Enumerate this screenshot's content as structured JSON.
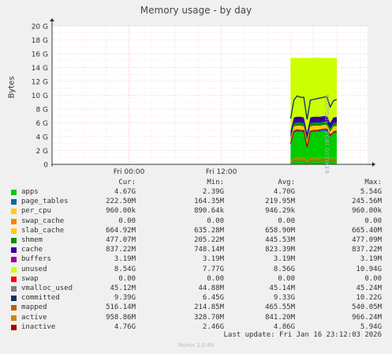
{
  "title": "Memory usage - by day",
  "ylabel": "Bytes",
  "side_label": "RRDTOOL / TOBI OETIKER",
  "x_ticks": [
    "Fri 00:00",
    "Fri 12:00"
  ],
  "y_ticks": [
    "0",
    "2 G",
    "4 G",
    "6 G",
    "8 G",
    "10 G",
    "12 G",
    "14 G",
    "16 G",
    "18 G",
    "20 G"
  ],
  "columns": [
    "Cur:",
    "Min:",
    "Avg:",
    "Max:"
  ],
  "legend": [
    {
      "name": "apps",
      "color": "#00cc00",
      "cur": "4.67G",
      "min": "2.39G",
      "avg": "4.70G",
      "max": "5.54G"
    },
    {
      "name": "page_tables",
      "color": "#0066b3",
      "cur": "222.50M",
      "min": "164.35M",
      "avg": "219.95M",
      "max": "245.56M"
    },
    {
      "name": "per_cpu",
      "color": "#ffcc00",
      "cur": "960.00k",
      "min": "890.64k",
      "avg": "946.29k",
      "max": "960.00k"
    },
    {
      "name": "swap_cache",
      "color": "#ff8000",
      "cur": "0.00",
      "min": "0.00",
      "avg": "0.00",
      "max": "0.00"
    },
    {
      "name": "slab_cache",
      "color": "#ffcc00",
      "cur": "664.92M",
      "min": "635.28M",
      "avg": "658.90M",
      "max": "665.40M"
    },
    {
      "name": "shmem",
      "color": "#008f00",
      "cur": "477.07M",
      "min": "205.22M",
      "avg": "445.53M",
      "max": "477.09M"
    },
    {
      "name": "cache",
      "color": "#330099",
      "cur": "837.22M",
      "min": "748.14M",
      "avg": "823.39M",
      "max": "837.22M"
    },
    {
      "name": "buffers",
      "color": "#990099",
      "cur": "3.19M",
      "min": "3.19M",
      "avg": "3.19M",
      "max": "3.19M"
    },
    {
      "name": "unused",
      "color": "#ccff00",
      "cur": "8.54G",
      "min": "7.77G",
      "avg": "8.56G",
      "max": "10.94G"
    },
    {
      "name": "swap",
      "color": "#ff0000",
      "cur": "0.00",
      "min": "0.00",
      "avg": "0.00",
      "max": "0.00"
    },
    {
      "name": "vmalloc_used",
      "color": "#808080",
      "cur": "45.12M",
      "min": "44.88M",
      "avg": "45.14M",
      "max": "45.24M"
    },
    {
      "name": "committed",
      "color": "#003366",
      "cur": "9.39G",
      "min": "6.45G",
      "avg": "9.33G",
      "max": "10.22G"
    },
    {
      "name": "mapped",
      "color": "#bf6000",
      "cur": "516.14M",
      "min": "214.85M",
      "avg": "465.55M",
      "max": "540.05M"
    },
    {
      "name": "active",
      "color": "#cc8800",
      "cur": "958.86M",
      "min": "328.70M",
      "avg": "841.20M",
      "max": "966.24M"
    },
    {
      "name": "inactive",
      "color": "#aa0000",
      "cur": "4.76G",
      "min": "2.46G",
      "avg": "4.86G",
      "max": "5.94G"
    }
  ],
  "last_update": "Last update: Fri Jan 16 23:12:03 2026",
  "footer": "Munin 2.0.69",
  "chart_data": {
    "type": "area",
    "title": "Memory usage - by day",
    "ylabel": "Bytes",
    "ylim": [
      0,
      20
    ],
    "y_unit": "G",
    "x_ticks": [
      "Fri 00:00",
      "Fri 12:00"
    ],
    "x_range_hours": [
      -10,
      31
    ],
    "data_start_hour": 21,
    "data_end_hour": 27,
    "series_gb": {
      "apps": [
        2.6,
        4.6,
        4.7,
        4.7,
        4.6,
        2.4,
        4.6,
        4.7,
        4.7,
        4.7,
        4.8,
        4.8,
        3.8,
        4.6,
        4.67
      ],
      "stack_total": [
        15.4,
        15.4,
        15.4,
        15.4,
        15.4,
        15.4,
        15.4,
        15.4,
        15.4,
        15.4,
        15.4,
        15.4,
        15.4,
        15.4,
        15.4
      ],
      "committed": [
        6.6,
        9.3,
        9.9,
        9.7,
        9.7,
        6.5,
        9.3,
        9.4,
        9.5,
        9.6,
        9.7,
        9.8,
        8.3,
        9.2,
        9.39
      ],
      "inactive": [
        3.0,
        4.8,
        5.0,
        4.9,
        4.9,
        2.5,
        4.8,
        4.9,
        4.9,
        5.0,
        5.1,
        5.1,
        4.2,
        4.6,
        4.76
      ],
      "active": [
        0.4,
        0.8,
        0.9,
        0.9,
        0.9,
        0.4,
        0.9,
        0.9,
        0.9,
        0.95,
        0.95,
        0.96,
        0.9,
        0.95,
        0.96
      ],
      "mapped": [
        0.25,
        0.45,
        0.5,
        0.5,
        0.5,
        0.25,
        0.5,
        0.5,
        0.5,
        0.52,
        0.53,
        0.54,
        0.5,
        0.52,
        0.52
      ]
    }
  }
}
